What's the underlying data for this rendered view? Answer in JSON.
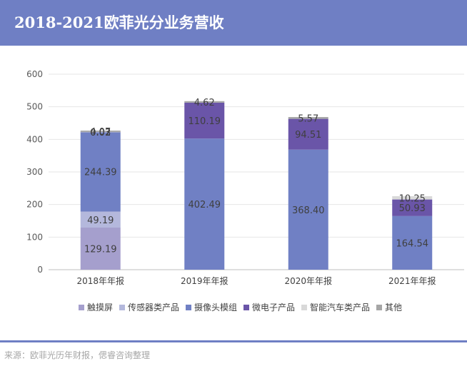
{
  "header": {
    "title": "2018-2021欧菲光分业务营收"
  },
  "source": {
    "text": "来源：欧菲光历年财报，偲睿咨询整理"
  },
  "chart_data": {
    "type": "bar",
    "stacked": true,
    "title": "",
    "xlabel": "",
    "ylabel": "",
    "ylim": [
      0,
      600
    ],
    "yticks": [
      0,
      100,
      200,
      300,
      400,
      500,
      600
    ],
    "grid": true,
    "legend_position": "bottom",
    "categories": [
      "2018年年报",
      "2019年年报",
      "2020年年报",
      "2021年年报"
    ],
    "series": [
      {
        "name": "触摸屏",
        "color": "#a59fcd",
        "values": [
          129.19,
          0,
          0,
          0
        ],
        "labels": [
          "129.19",
          "",
          "",
          ""
        ]
      },
      {
        "name": "传感器类产品",
        "color": "#b4b8dc",
        "values": [
          49.19,
          0,
          0,
          0
        ],
        "labels": [
          "49.19",
          "",
          "",
          ""
        ]
      },
      {
        "name": "摄像头模组",
        "color": "#7080c4",
        "values": [
          244.39,
          402.49,
          368.4,
          164.54
        ],
        "labels": [
          "244.39",
          "402.49",
          "368.40",
          "164.54"
        ]
      },
      {
        "name": "微电子产品",
        "color": "#6a55a8",
        "values": [
          0.02,
          110.19,
          94.51,
          50.93
        ],
        "labels": [
          "0.02",
          "110.19",
          "94.51",
          "50.93"
        ]
      },
      {
        "name": "智能汽车类产品",
        "color": "#d9d9d9",
        "values": [
          0.03,
          0,
          0,
          10.25
        ],
        "labels": [
          "0.03",
          "",
          "",
          "10.25"
        ]
      },
      {
        "name": "其他",
        "color": "#a6a6a6",
        "values": [
          4.07,
          4.62,
          5.57,
          0
        ],
        "labels": [
          "4.07",
          "4.62",
          "5.57",
          ""
        ]
      }
    ]
  }
}
